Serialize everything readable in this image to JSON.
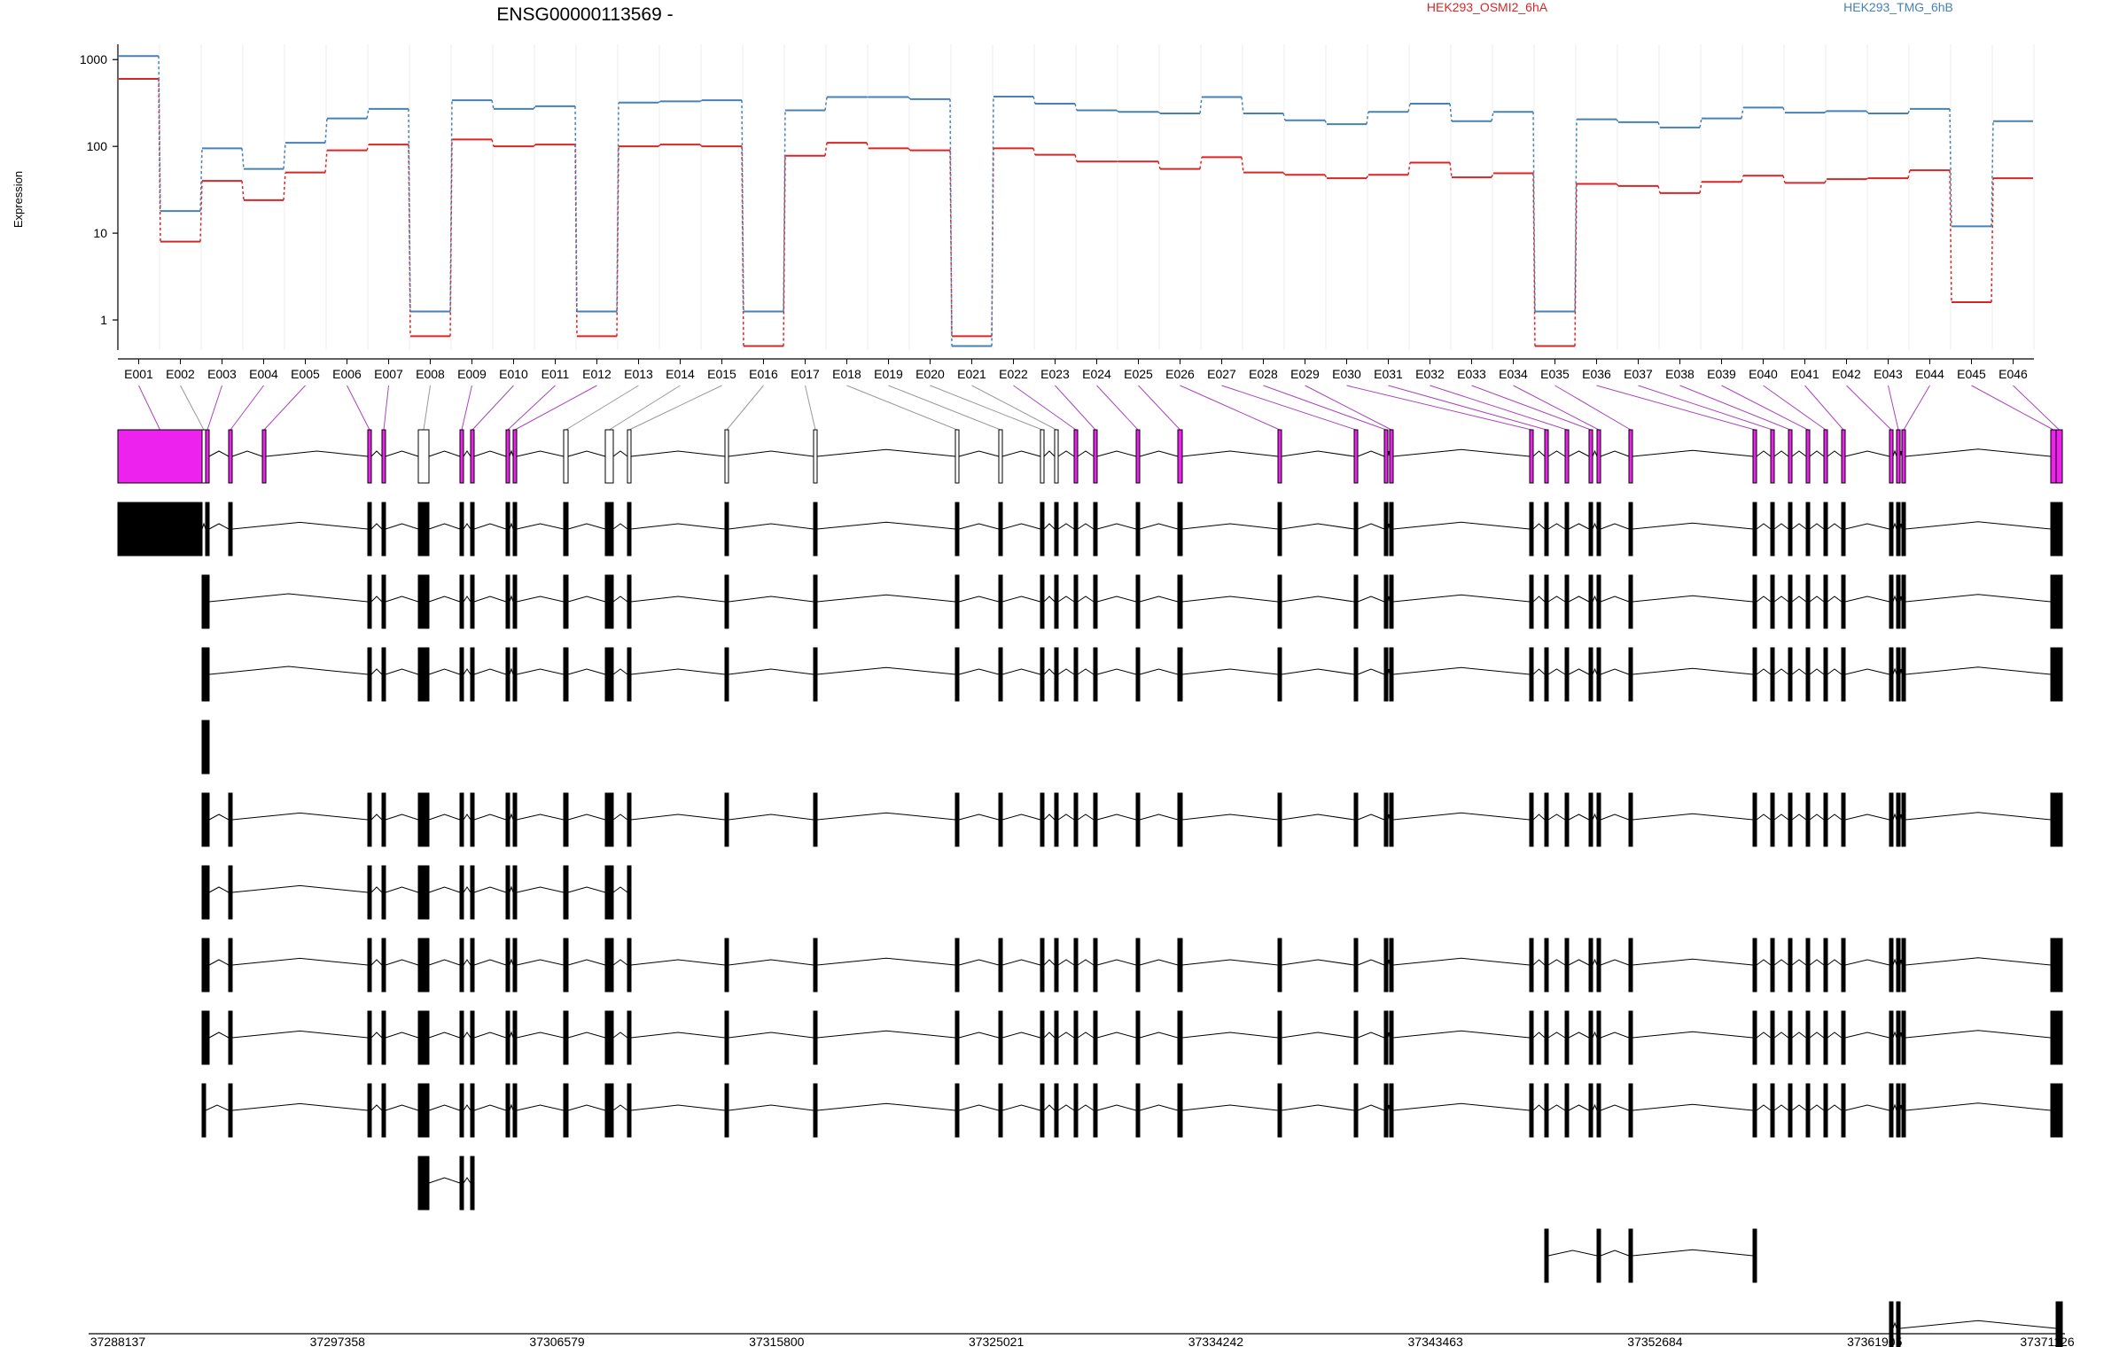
{
  "chart_data": {
    "type": "line",
    "title": "ENSG00000113569 -",
    "ylabel": "Expression",
    "xlabel": "",
    "y_scale": "log",
    "ylim": [
      0.45,
      1500
    ],
    "y_ticks": [
      1,
      10,
      100,
      1000
    ],
    "y_tick_labels": [
      "1",
      "10",
      "100",
      "1000"
    ],
    "grid": "vertical",
    "legend_position": "top",
    "categories": [
      "E001",
      "E002",
      "E003",
      "E004",
      "E005",
      "E006",
      "E007",
      "E008",
      "E009",
      "E010",
      "E011",
      "E012",
      "E013",
      "E014",
      "E015",
      "E016",
      "E017",
      "E018",
      "E019",
      "E020",
      "E021",
      "E022",
      "E023",
      "E024",
      "E025",
      "E026",
      "E027",
      "E028",
      "E029",
      "E030",
      "E031",
      "E032",
      "E033",
      "E034",
      "E035",
      "E036",
      "E037",
      "E038",
      "E039",
      "E040",
      "E041",
      "E042",
      "E043",
      "E044",
      "E045",
      "E046"
    ],
    "series": [
      {
        "name": "HEK293_OSMI2_6hA",
        "color": "#d62728",
        "values": [
          600,
          8,
          40,
          24,
          50,
          90,
          105,
          0.65,
          120,
          100,
          105,
          0.65,
          100,
          105,
          100,
          0.5,
          78,
          110,
          95,
          90,
          0.65,
          95,
          80,
          67,
          67,
          55,
          75,
          50,
          47,
          43,
          47,
          65,
          44,
          49,
          0.5,
          37,
          35,
          29,
          39,
          46,
          38,
          42,
          43,
          53,
          1.6,
          43
        ]
      },
      {
        "name": "HEK293_TMG_6hB",
        "color": "#4682b4",
        "values": [
          1100,
          18,
          95,
          55,
          110,
          210,
          270,
          1.25,
          340,
          270,
          290,
          1.25,
          320,
          330,
          340,
          1.25,
          260,
          370,
          370,
          350,
          0.5,
          375,
          310,
          260,
          250,
          240,
          370,
          240,
          200,
          180,
          250,
          310,
          195,
          250,
          1.25,
          205,
          190,
          165,
          210,
          280,
          245,
          255,
          240,
          270,
          12,
          195
        ]
      }
    ],
    "genomic_axis_labels": [
      "37288137",
      "37297358",
      "37306579",
      "37315800",
      "37325021",
      "37334242",
      "37343463",
      "37352684",
      "37361905",
      "37371126"
    ],
    "transcripts": [
      {
        "exons": [
          1,
          2,
          3,
          4,
          5,
          6,
          7,
          8,
          9,
          10,
          11,
          12,
          13,
          14,
          15,
          16,
          17,
          18,
          19,
          20,
          21,
          22,
          23,
          24,
          25,
          26,
          27,
          28,
          29,
          30,
          31,
          32,
          33,
          34,
          35,
          36,
          37,
          38,
          39,
          40,
          41,
          42,
          43,
          44,
          45,
          46
        ]
      },
      {
        "exons": [
          1,
          3,
          4,
          6,
          7,
          8,
          9,
          10,
          11,
          12,
          13,
          14,
          15,
          16,
          17,
          18,
          19,
          20,
          21,
          22,
          23,
          24,
          25,
          26,
          27,
          28,
          29,
          30,
          31,
          32,
          33,
          34,
          35,
          36,
          37,
          38,
          39,
          40,
          41,
          42,
          43,
          44,
          45,
          46
        ]
      },
      {
        "exons": [
          2,
          3,
          6,
          7,
          8,
          9,
          10,
          11,
          12,
          13,
          14,
          15,
          16,
          17,
          18,
          19,
          20,
          21,
          22,
          23,
          24,
          25,
          26,
          27,
          28,
          29,
          30,
          31,
          32,
          33,
          34,
          35,
          36,
          37,
          38,
          39,
          40,
          41,
          42,
          43,
          44,
          45,
          46
        ]
      },
      {
        "exons": [
          2,
          3,
          6,
          7,
          8,
          9,
          10,
          11,
          12,
          13,
          14,
          15,
          16,
          17,
          18,
          19,
          20,
          21,
          22,
          23,
          24,
          25,
          26,
          27,
          28,
          29,
          30,
          31,
          32,
          33,
          34,
          35,
          36,
          37,
          38,
          39,
          40,
          41,
          42,
          43,
          44,
          45,
          46
        ]
      },
      {
        "exons": [
          2,
          3
        ]
      },
      {
        "exons": [
          2,
          3,
          4,
          6,
          7,
          8,
          9,
          10,
          11,
          12,
          13,
          14,
          15,
          16,
          17,
          18,
          19,
          20,
          21,
          22,
          23,
          24,
          25,
          26,
          27,
          28,
          29,
          30,
          31,
          32,
          33,
          34,
          35,
          36,
          37,
          38,
          39,
          40,
          41,
          42,
          43,
          44,
          45,
          46
        ]
      },
      {
        "exons": [
          2,
          3,
          4,
          6,
          7,
          8,
          9,
          10,
          11,
          12,
          13,
          14,
          15
        ]
      },
      {
        "exons": [
          2,
          3,
          4,
          6,
          7,
          8,
          9,
          10,
          11,
          12,
          13,
          14,
          15,
          16,
          17,
          18,
          19,
          20,
          21,
          22,
          23,
          24,
          25,
          26,
          27,
          28,
          29,
          30,
          31,
          32,
          33,
          34,
          35,
          36,
          37,
          38,
          39,
          40,
          41,
          42,
          43,
          44,
          45,
          46
        ]
      },
      {
        "exons": [
          2,
          3,
          4,
          6,
          7,
          8,
          9,
          10,
          11,
          12,
          13,
          14,
          15,
          16,
          17,
          18,
          19,
          20,
          21,
          22,
          23,
          24,
          25,
          26,
          27,
          28,
          29,
          30,
          31,
          32,
          33,
          34,
          35,
          36,
          37,
          38,
          39,
          40,
          41,
          42,
          43,
          44,
          45,
          46
        ]
      },
      {
        "exons": [
          2,
          4,
          6,
          7,
          8,
          9,
          10,
          11,
          12,
          13,
          14,
          15,
          16,
          17,
          18,
          19,
          20,
          21,
          22,
          23,
          24,
          25,
          26,
          27,
          28,
          29,
          30,
          31,
          32,
          33,
          34,
          35,
          36,
          37,
          38,
          39,
          40,
          41,
          42,
          43,
          44,
          45,
          46
        ]
      },
      {
        "exons": [
          8,
          9,
          10
        ]
      },
      {
        "exons": [
          31,
          34,
          35,
          36
        ]
      },
      {
        "exons": [
          42,
          43,
          46
        ]
      }
    ]
  }
}
